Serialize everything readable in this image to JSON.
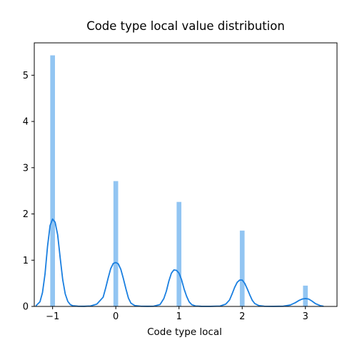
{
  "chart_data": {
    "type": "histogram-kde",
    "title": "Code type local value distribution",
    "xlabel": "Code type local",
    "ylabel": "",
    "x_ticks": [
      -1,
      0,
      1,
      2,
      3
    ],
    "x_tick_labels": [
      "−1",
      "0",
      "1",
      "2",
      "3"
    ],
    "y_ticks": [
      0,
      1,
      2,
      3,
      4,
      5
    ],
    "y_tick_labels": [
      "0",
      "1",
      "2",
      "3",
      "4",
      "5"
    ],
    "xlim": [
      -1.29,
      3.5
    ],
    "ylim": [
      0,
      5.7
    ],
    "grid": false,
    "histogram": {
      "bar_width": 0.075,
      "color": "#92c5f2",
      "bars": [
        {
          "x": -1,
          "value": 5.43
        },
        {
          "x": 0,
          "value": 2.71
        },
        {
          "x": 1,
          "value": 2.26
        },
        {
          "x": 2,
          "value": 1.64
        },
        {
          "x": 3,
          "value": 0.45
        }
      ]
    },
    "kde": {
      "color": "#1a7fe0",
      "x": [
        -1.26,
        -1.2,
        -1.16,
        -1.12,
        -1.08,
        -1.04,
        -1.0,
        -0.96,
        -0.92,
        -0.88,
        -0.84,
        -0.8,
        -0.76,
        -0.72,
        -0.68,
        -0.6,
        -0.5,
        -0.4,
        -0.3,
        -0.2,
        -0.16,
        -0.12,
        -0.08,
        -0.04,
        0.0,
        0.04,
        0.08,
        0.12,
        0.16,
        0.2,
        0.24,
        0.3,
        0.4,
        0.5,
        0.6,
        0.7,
        0.76,
        0.8,
        0.84,
        0.88,
        0.92,
        0.96,
        1.0,
        1.04,
        1.08,
        1.12,
        1.16,
        1.2,
        1.26,
        1.35,
        1.5,
        1.65,
        1.74,
        1.8,
        1.84,
        1.88,
        1.92,
        1.96,
        2.0,
        2.04,
        2.08,
        2.12,
        2.16,
        2.2,
        2.26,
        2.35,
        2.5,
        2.65,
        2.76,
        2.84,
        2.9,
        2.95,
        3.0,
        3.05,
        3.1,
        3.16,
        3.24,
        3.28
      ],
      "y": [
        0.02,
        0.1,
        0.3,
        0.7,
        1.3,
        1.75,
        1.89,
        1.82,
        1.55,
        1.05,
        0.58,
        0.27,
        0.11,
        0.04,
        0.015,
        0.005,
        0.003,
        0.01,
        0.05,
        0.2,
        0.4,
        0.62,
        0.82,
        0.93,
        0.95,
        0.92,
        0.8,
        0.6,
        0.38,
        0.18,
        0.07,
        0.02,
        0.004,
        0.003,
        0.005,
        0.04,
        0.17,
        0.33,
        0.55,
        0.72,
        0.79,
        0.78,
        0.72,
        0.58,
        0.38,
        0.22,
        0.1,
        0.04,
        0.01,
        0.003,
        0.002,
        0.008,
        0.05,
        0.14,
        0.27,
        0.41,
        0.52,
        0.57,
        0.57,
        0.5,
        0.38,
        0.25,
        0.13,
        0.06,
        0.02,
        0.004,
        0.002,
        0.005,
        0.03,
        0.08,
        0.13,
        0.16,
        0.17,
        0.16,
        0.12,
        0.06,
        0.015,
        0.005
      ]
    }
  }
}
